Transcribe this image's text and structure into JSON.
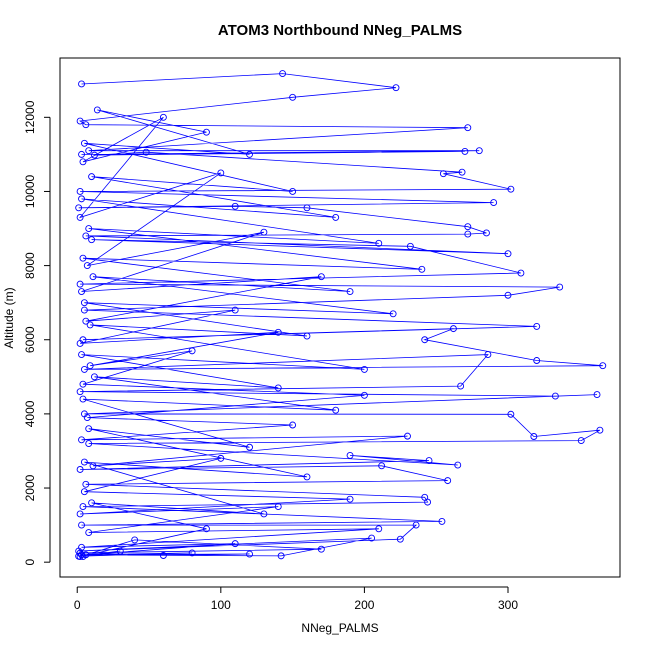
{
  "chart_data": {
    "type": "line",
    "title": "ATOM3 Northbound NNeg_PALMS",
    "xlabel": "NNeg_PALMS",
    "ylabel": "Altitude (m)",
    "xlim": [
      -12,
      378
    ],
    "ylim": [
      -400,
      13600
    ],
    "x_ticks": [
      0,
      100,
      200,
      300
    ],
    "y_ticks": [
      0,
      2000,
      4000,
      6000,
      8000,
      10000,
      12000
    ],
    "grid": false,
    "color": "#0000ff",
    "marker": "open-circle",
    "series": [
      {
        "values_note": "",
        "points": [
          [
            3,
            12900
          ],
          [
            143,
            13180
          ],
          [
            222,
            12800
          ],
          [
            150,
            12540
          ],
          [
            2,
            11900
          ],
          [
            6,
            11800
          ],
          [
            272,
            11720
          ],
          [
            8,
            11100
          ],
          [
            280,
            11100
          ],
          [
            3,
            11000
          ],
          [
            270,
            11080
          ],
          [
            12,
            10980
          ],
          [
            48,
            11060
          ],
          [
            268,
            10520
          ],
          [
            255,
            10480
          ],
          [
            302,
            10060
          ],
          [
            2,
            10000
          ],
          [
            290,
            9700
          ],
          [
            1,
            9560
          ],
          [
            110,
            9600
          ],
          [
            160,
            9560
          ],
          [
            272,
            9050
          ],
          [
            285,
            8880
          ],
          [
            272,
            8850
          ],
          [
            6,
            8800
          ],
          [
            300,
            8320
          ],
          [
            10,
            8700
          ],
          [
            232,
            8520
          ],
          [
            309,
            7800
          ],
          [
            2,
            7500
          ],
          [
            336,
            7420
          ],
          [
            300,
            7200
          ],
          [
            5,
            6800
          ],
          [
            320,
            6360
          ],
          [
            4,
            6000
          ],
          [
            262,
            6300
          ],
          [
            242,
            6000
          ],
          [
            320,
            5440
          ],
          [
            366,
            5300
          ],
          [
            5,
            5200
          ],
          [
            286,
            5600
          ],
          [
            267,
            4750
          ],
          [
            2,
            4600
          ],
          [
            333,
            4480
          ],
          [
            362,
            4520
          ],
          [
            5,
            4000
          ],
          [
            302,
            3990
          ],
          [
            318,
            3390
          ],
          [
            364,
            3560
          ],
          [
            351,
            3280
          ],
          [
            8,
            3200
          ],
          [
            265,
            2620
          ],
          [
            190,
            2880
          ],
          [
            245,
            2740
          ],
          [
            2,
            2500
          ],
          [
            212,
            2600
          ],
          [
            258,
            2200
          ],
          [
            6,
            2100
          ],
          [
            242,
            1750
          ],
          [
            244,
            1620
          ],
          [
            4,
            1500
          ],
          [
            254,
            1100
          ],
          [
            3,
            1000
          ],
          [
            236,
            1000
          ],
          [
            225,
            620
          ],
          [
            1,
            300
          ],
          [
            205,
            650
          ],
          [
            142,
            170
          ],
          [
            3,
            200
          ],
          [
            120,
            220
          ],
          [
            60,
            180
          ],
          [
            2,
            250
          ],
          [
            170,
            350
          ],
          [
            40,
            600
          ],
          [
            2,
            150
          ],
          [
            90,
            900
          ],
          [
            10,
            1600
          ],
          [
            130,
            1300
          ],
          [
            5,
            2700
          ],
          [
            160,
            2300
          ],
          [
            8,
            3600
          ],
          [
            120,
            3100
          ],
          [
            4,
            4400
          ],
          [
            180,
            4100
          ],
          [
            12,
            5000
          ],
          [
            140,
            4700
          ],
          [
            3,
            5600
          ],
          [
            200,
            5200
          ],
          [
            9,
            6400
          ],
          [
            160,
            6100
          ],
          [
            5,
            7000
          ],
          [
            220,
            6700
          ],
          [
            11,
            7700
          ],
          [
            190,
            7300
          ],
          [
            4,
            8200
          ],
          [
            240,
            7900
          ],
          [
            8,
            9000
          ],
          [
            210,
            8600
          ],
          [
            3,
            9800
          ],
          [
            180,
            9300
          ],
          [
            10,
            10400
          ],
          [
            150,
            10000
          ],
          [
            5,
            11300
          ],
          [
            120,
            11000
          ],
          [
            14,
            12200
          ],
          [
            90,
            11600
          ],
          [
            4,
            10800
          ],
          [
            60,
            12000
          ],
          [
            2,
            9300
          ],
          [
            100,
            10500
          ],
          [
            7,
            8000
          ],
          [
            130,
            8900
          ],
          [
            3,
            7300
          ],
          [
            170,
            7700
          ],
          [
            6,
            6500
          ],
          [
            110,
            6800
          ],
          [
            2,
            5900
          ],
          [
            140,
            6200
          ],
          [
            9,
            5300
          ],
          [
            80,
            5700
          ],
          [
            4,
            4800
          ],
          [
            200,
            4500
          ],
          [
            7,
            3900
          ],
          [
            150,
            3700
          ],
          [
            3,
            3300
          ],
          [
            230,
            3400
          ],
          [
            11,
            2600
          ],
          [
            100,
            2800
          ],
          [
            5,
            1900
          ],
          [
            190,
            1700
          ],
          [
            2,
            1300
          ],
          [
            140,
            1500
          ],
          [
            8,
            800
          ],
          [
            210,
            900
          ],
          [
            3,
            400
          ],
          [
            110,
            500
          ],
          [
            6,
            200
          ],
          [
            80,
            250
          ],
          [
            1,
            160
          ],
          [
            30,
            300
          ],
          [
            4,
            150
          ]
        ]
      }
    ]
  }
}
